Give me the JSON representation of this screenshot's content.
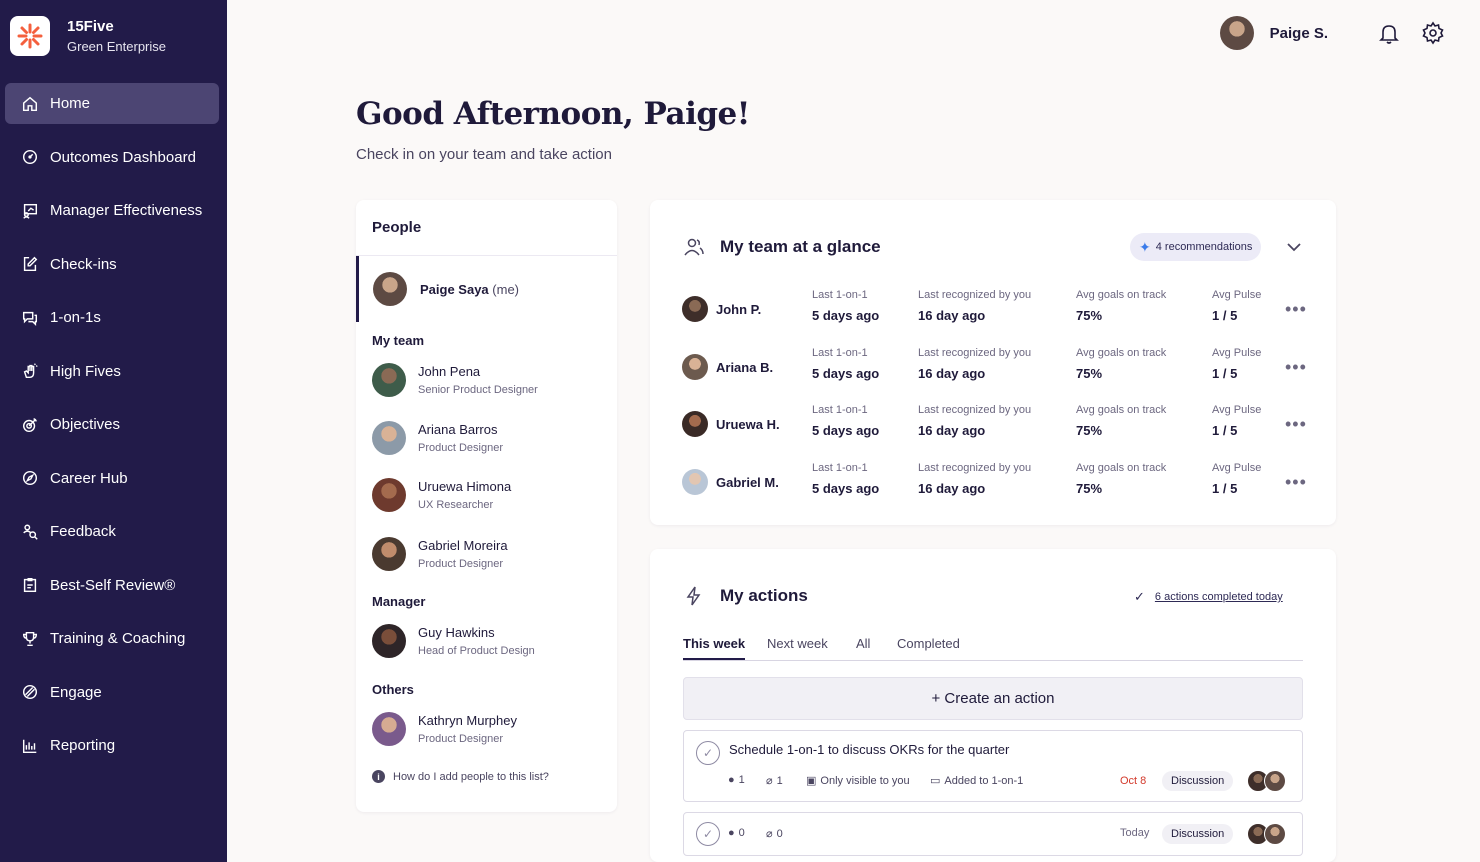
{
  "brand": {
    "name": "15Five",
    "subtitle": "Green Enterprise"
  },
  "nav": [
    {
      "label": "Home",
      "icon": "home-icon",
      "active": true
    },
    {
      "label": "Outcomes Dashboard",
      "icon": "dashboard-icon"
    },
    {
      "label": "Manager Effectiveness",
      "icon": "manager-icon"
    },
    {
      "label": "Check-ins",
      "icon": "edit-icon"
    },
    {
      "label": "1-on-1s",
      "icon": "chat-icon"
    },
    {
      "label": "High Fives",
      "icon": "hand-icon"
    },
    {
      "label": "Objectives",
      "icon": "target-icon"
    },
    {
      "label": "Career Hub",
      "icon": "compass-icon"
    },
    {
      "label": "Feedback",
      "icon": "feedback-icon"
    },
    {
      "label": "Best-Self Review®",
      "icon": "clipboard-icon"
    },
    {
      "label": "Training & Coaching",
      "icon": "trophy-icon"
    },
    {
      "label": "Engage",
      "icon": "engage-icon"
    },
    {
      "label": "Reporting",
      "icon": "chart-icon"
    }
  ],
  "topbar": {
    "user_name": "Paige S."
  },
  "greeting": {
    "title": "Good Afternoon, Paige!",
    "subtitle": "Check in on your team and take action"
  },
  "people": {
    "title": "People",
    "me": {
      "name": "Paige Saya",
      "tag": "(me)"
    },
    "my_team_label": "My team",
    "my_team": [
      {
        "name": "John Pena",
        "role": "Senior Product Designer"
      },
      {
        "name": "Ariana Barros",
        "role": "Product Designer"
      },
      {
        "name": "Uruewa Himona",
        "role": "UX Researcher"
      },
      {
        "name": "Gabriel Moreira",
        "role": "Product Designer"
      }
    ],
    "manager_label": "Manager",
    "manager": {
      "name": "Guy Hawkins",
      "role": "Head of Product Design"
    },
    "others_label": "Others",
    "others": [
      {
        "name": "Kathryn Murphey",
        "role": "Product Designer"
      }
    ],
    "help_text": "How do I add people to this list?"
  },
  "glance": {
    "title": "My team at a glance",
    "recommendations": "4 recommendations",
    "labels": {
      "last_1on1": "Last 1-on-1",
      "last_recognized": "Last recognized by you",
      "avg_goals": "Avg goals on track",
      "avg_pulse": "Avg Pulse"
    },
    "rows": [
      {
        "name": "John P.",
        "last_1on1": "5 days ago",
        "last_recognized": "16 day ago",
        "avg_goals": "75%",
        "avg_pulse": "1 / 5"
      },
      {
        "name": "Ariana B.",
        "last_1on1": "5 days ago",
        "last_recognized": "16 day ago",
        "avg_goals": "75%",
        "avg_pulse": "1 / 5"
      },
      {
        "name": "Uruewa H.",
        "last_1on1": "5 days ago",
        "last_recognized": "16 day ago",
        "avg_goals": "75%",
        "avg_pulse": "1 / 5"
      },
      {
        "name": "Gabriel M.",
        "last_1on1": "5 days ago",
        "last_recognized": "16 day ago",
        "avg_goals": "75%",
        "avg_pulse": "1 / 5"
      }
    ],
    "more_label": "•••"
  },
  "actions": {
    "title": "My actions",
    "completed_today": "6 actions completed today",
    "tabs": [
      "This week",
      "Next week",
      "All",
      "Completed"
    ],
    "create_label": "+ Create an action",
    "items": [
      {
        "title": "Schedule 1-on-1 to discuss OKRs for the quarter",
        "comments": "1",
        "attachments": "1",
        "visibility": "Only visible to you",
        "added_to": "Added to 1-on-1",
        "date": "Oct 8",
        "tag": "Discussion"
      },
      {
        "comments": "0",
        "attachments": "0",
        "date": "Today",
        "tag": "Discussion"
      }
    ]
  },
  "colors": {
    "sidebar": "#221b49",
    "sidebar_active": "#4c4573",
    "brand_accent": "#f4603e",
    "date_overdue": "#d33a2c"
  }
}
